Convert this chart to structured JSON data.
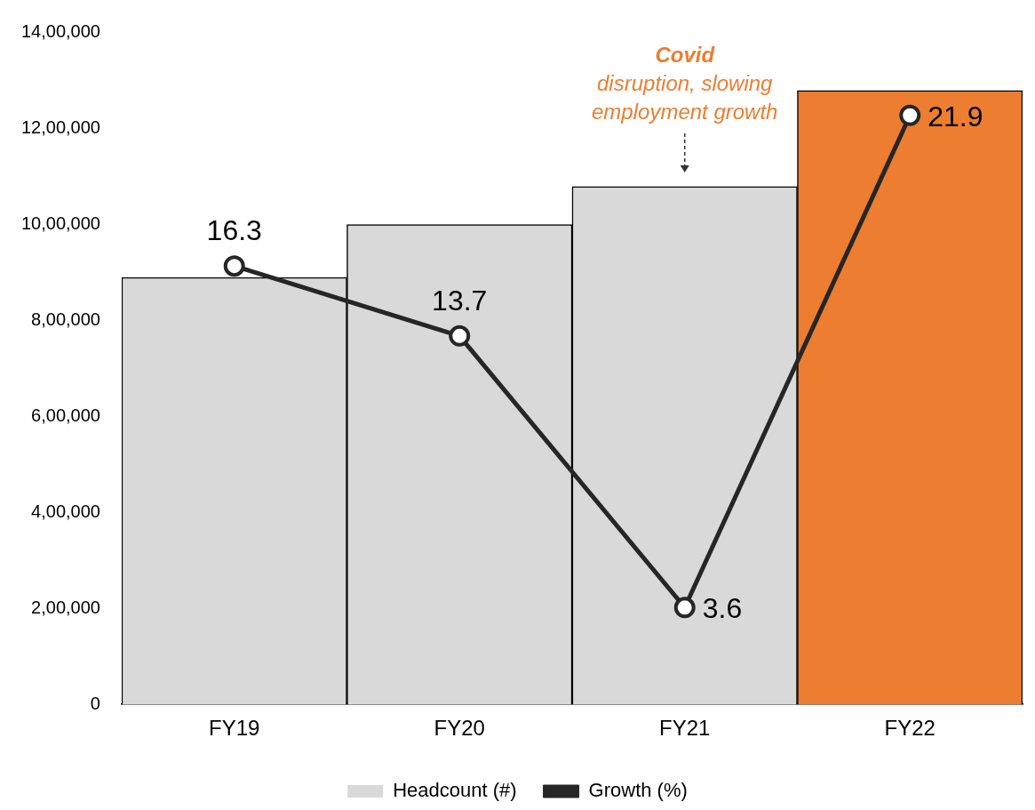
{
  "chart_data": {
    "type": "bar",
    "categories": [
      "FY19",
      "FY20",
      "FY21",
      "FY22"
    ],
    "series": [
      {
        "name": "Headcount (#)",
        "color": "#d9d9d9",
        "colors": [
          "#d9d9d9",
          "#d9d9d9",
          "#d9d9d9",
          "#ed7d31"
        ],
        "values": [
          889000,
          999000,
          1078000,
          1278000
        ]
      },
      {
        "name": "Growth (%)",
        "type": "line",
        "axis": "y2",
        "color": "#262626",
        "values": [
          16.3,
          13.7,
          3.6,
          21.9
        ],
        "value_labels": [
          "16.3",
          "13.7",
          "3.6",
          "21.9"
        ]
      }
    ],
    "ylim": [
      0,
      1400000
    ],
    "yticks": [
      {
        "value": 0,
        "label": "0"
      },
      {
        "value": 200000,
        "label": "2,00,000"
      },
      {
        "value": 400000,
        "label": "4,00,000"
      },
      {
        "value": 600000,
        "label": "6,00,000"
      },
      {
        "value": 800000,
        "label": "8,00,000"
      },
      {
        "value": 1000000,
        "label": "10,00,000"
      },
      {
        "value": 1200000,
        "label": "12,00,000"
      },
      {
        "value": 1400000,
        "label": "14,00,000"
      }
    ],
    "marker": "circle",
    "grid": false,
    "legend": "bottom",
    "annotations": [
      "Covid",
      {
        "text": "disruption, slowing employment growth",
        "x": "FY21",
        "y": 1078000
      }
    ]
  }
}
